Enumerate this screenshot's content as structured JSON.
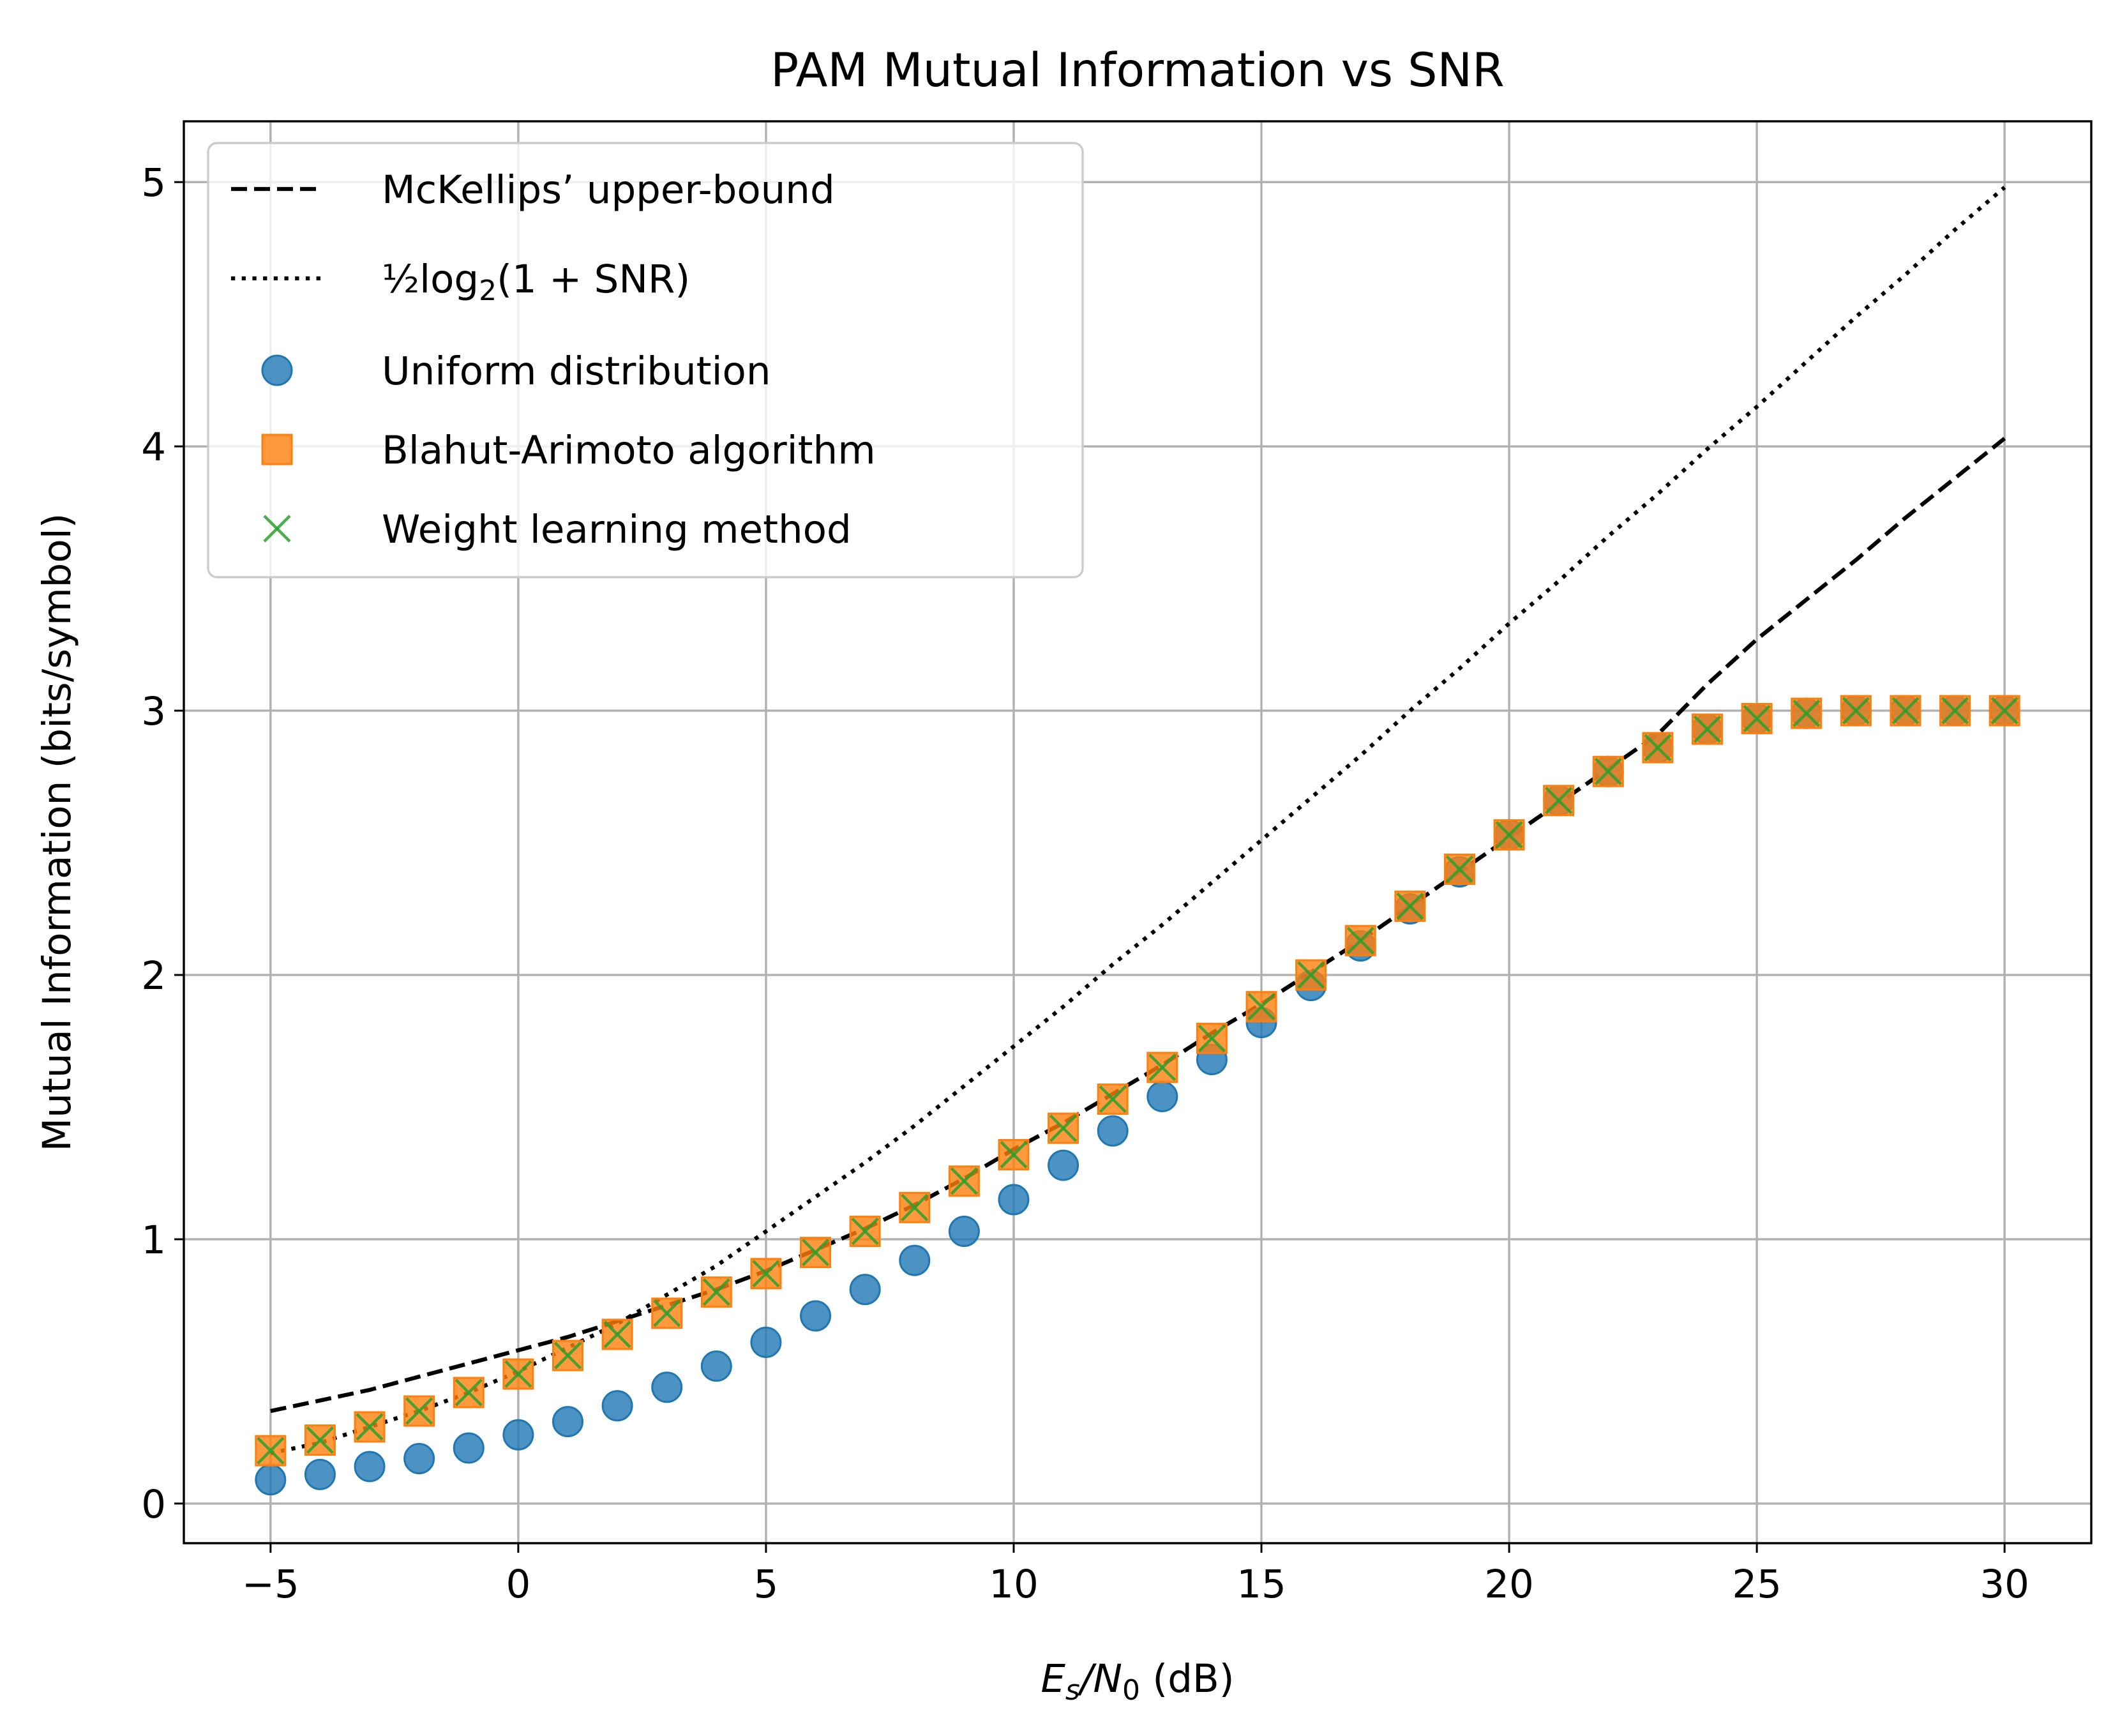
{
  "chart_data": {
    "type": "line",
    "title": "PAM Mutual Information vs SNR",
    "xlabel": "E_s/N_0 (dB)",
    "ylabel": "Mutual Information (bits/symbol)",
    "xlim": [
      -6.75,
      31.75
    ],
    "ylim": [
      -0.15,
      5.23
    ],
    "xticks": [
      -5,
      0,
      5,
      10,
      15,
      20,
      25,
      30
    ],
    "xtick_labels": [
      "−5",
      "0",
      "5",
      "10",
      "15",
      "20",
      "25",
      "30"
    ],
    "yticks": [
      0,
      1,
      2,
      3,
      4,
      5
    ],
    "ytick_labels": [
      "0",
      "1",
      "2",
      "3",
      "4",
      "5"
    ],
    "grid": true,
    "legend_position": "top-left",
    "series": [
      {
        "name": "McKellips’ upper-bound",
        "style": "dashed-line",
        "color": "#000000",
        "x": [
          -5,
          -4,
          -3,
          -2,
          -1,
          0,
          1,
          2,
          3,
          4,
          5,
          6,
          7,
          8,
          9,
          10,
          11,
          12,
          13,
          14,
          15,
          16,
          17,
          18,
          19,
          20,
          21,
          22,
          23,
          24,
          25,
          26,
          27,
          28,
          29,
          30
        ],
        "values": [
          0.35,
          0.39,
          0.43,
          0.48,
          0.53,
          0.58,
          0.63,
          0.69,
          0.75,
          0.81,
          0.88,
          0.96,
          1.04,
          1.13,
          1.23,
          1.34,
          1.44,
          1.55,
          1.66,
          1.78,
          1.89,
          2.01,
          2.13,
          2.26,
          2.39,
          2.52,
          2.65,
          2.78,
          2.91,
          3.1,
          3.27,
          3.42,
          3.57,
          3.73,
          3.88,
          4.03
        ]
      },
      {
        "name": "½log₂(1 + SNR)",
        "style": "dotted-line",
        "color": "#000000",
        "x": [
          -5,
          -4,
          -3,
          -2,
          -1,
          0,
          1,
          2,
          3,
          4,
          5,
          6,
          7,
          8,
          9,
          10,
          11,
          12,
          13,
          14,
          15,
          16,
          17,
          18,
          19,
          20,
          21,
          22,
          23,
          24,
          25,
          26,
          27,
          28,
          29,
          30
        ],
        "values": [
          0.19,
          0.23,
          0.29,
          0.35,
          0.42,
          0.5,
          0.59,
          0.68,
          0.79,
          0.9,
          1.03,
          1.16,
          1.29,
          1.43,
          1.58,
          1.73,
          1.88,
          2.04,
          2.19,
          2.35,
          2.51,
          2.67,
          2.83,
          3.0,
          3.16,
          3.33,
          3.49,
          3.66,
          3.82,
          3.99,
          4.15,
          4.32,
          4.49,
          4.65,
          4.82,
          4.98
        ]
      },
      {
        "name": "Uniform distribution",
        "style": "circle-marker",
        "color": "#1f77b4",
        "x": [
          -5,
          -4,
          -3,
          -2,
          -1,
          0,
          1,
          2,
          3,
          4,
          5,
          6,
          7,
          8,
          9,
          10,
          11,
          12,
          13,
          14,
          15,
          16,
          17,
          18,
          19,
          20,
          21,
          22,
          23,
          24,
          25,
          26,
          27,
          28,
          29,
          30
        ],
        "values": [
          0.09,
          0.11,
          0.14,
          0.17,
          0.21,
          0.26,
          0.31,
          0.37,
          0.44,
          0.52,
          0.61,
          0.71,
          0.81,
          0.92,
          1.03,
          1.15,
          1.28,
          1.41,
          1.54,
          1.68,
          1.82,
          1.96,
          2.11,
          2.25,
          2.39,
          2.53,
          2.66,
          2.77,
          2.86,
          2.93,
          2.97,
          2.99,
          3.0,
          3.0,
          3.0,
          3.0
        ]
      },
      {
        "name": "Blahut-Arimoto algorithm",
        "style": "square-marker",
        "color": "#ff7f0e",
        "x": [
          -5,
          -4,
          -3,
          -2,
          -1,
          0,
          1,
          2,
          3,
          4,
          5,
          6,
          7,
          8,
          9,
          10,
          11,
          12,
          13,
          14,
          15,
          16,
          17,
          18,
          19,
          20,
          21,
          22,
          23,
          24,
          25,
          26,
          27,
          28,
          29,
          30
        ],
        "values": [
          0.2,
          0.24,
          0.29,
          0.35,
          0.42,
          0.49,
          0.56,
          0.64,
          0.72,
          0.8,
          0.87,
          0.95,
          1.03,
          1.12,
          1.22,
          1.32,
          1.42,
          1.53,
          1.65,
          1.76,
          1.88,
          2.0,
          2.13,
          2.26,
          2.4,
          2.53,
          2.66,
          2.77,
          2.86,
          2.93,
          2.97,
          2.99,
          3.0,
          3.0,
          3.0,
          3.0
        ]
      },
      {
        "name": "Weight learning method",
        "style": "x-marker",
        "color": "#2ca02c",
        "x": [
          -5,
          -4,
          -3,
          -2,
          -1,
          0,
          1,
          2,
          3,
          4,
          5,
          6,
          7,
          8,
          9,
          10,
          11,
          12,
          13,
          14,
          15,
          16,
          17,
          18,
          19,
          20,
          21,
          22,
          23,
          24,
          25,
          26,
          27,
          28,
          29,
          30
        ],
        "values": [
          0.2,
          0.24,
          0.29,
          0.35,
          0.42,
          0.49,
          0.56,
          0.64,
          0.72,
          0.8,
          0.87,
          0.95,
          1.03,
          1.12,
          1.22,
          1.32,
          1.42,
          1.53,
          1.65,
          1.76,
          1.88,
          2.0,
          2.13,
          2.26,
          2.4,
          2.53,
          2.66,
          2.77,
          2.86,
          2.93,
          2.97,
          2.99,
          3.0,
          3.0,
          3.0,
          3.0
        ]
      }
    ]
  }
}
